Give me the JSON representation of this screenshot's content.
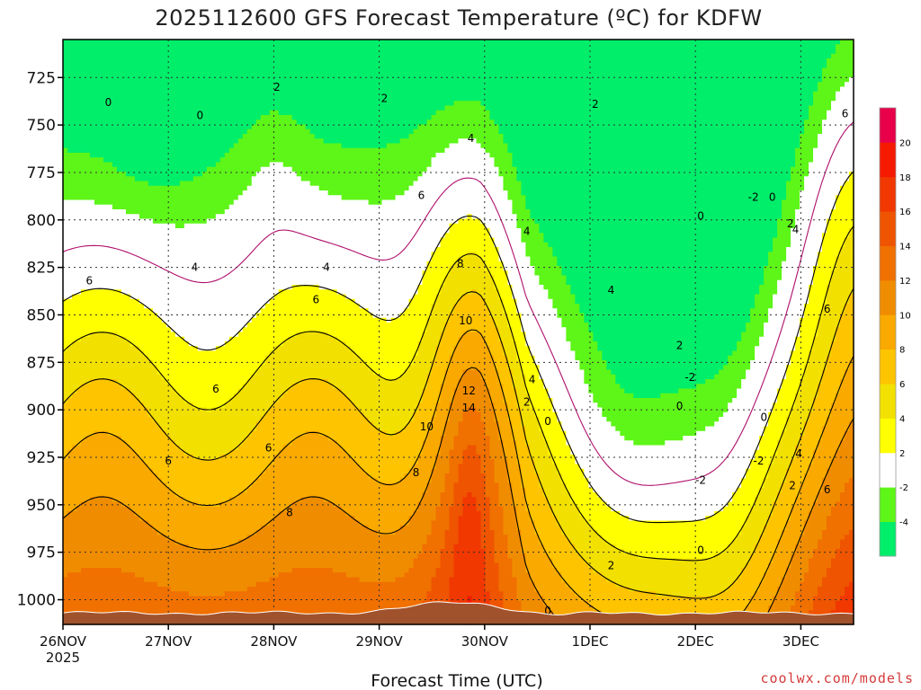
{
  "chart_data": {
    "type": "heatmap",
    "title": "2025112600 GFS Forecast Temperature (ºC) for KDFW",
    "xlabel": "Forecast Time (UTC)",
    "ylabel": "",
    "x_ticks": [
      "26NOV",
      "27NOV",
      "28NOV",
      "29NOV",
      "30NOV",
      "1DEC",
      "2DEC",
      "3DEC"
    ],
    "x_year_label": "2025",
    "xlim_days": [
      0,
      7.5
    ],
    "y_ticks": [
      725,
      750,
      775,
      800,
      825,
      850,
      875,
      900,
      925,
      950,
      975,
      1000
    ],
    "ylim_hpa": [
      705,
      1013
    ],
    "y_inverted": true,
    "grid": true,
    "colorbar": {
      "position": "right",
      "levels": [
        -6,
        -4,
        -2,
        2,
        4,
        6,
        8,
        10,
        12,
        14,
        16,
        18,
        20,
        22
      ],
      "tick_labels": [
        "-4",
        "-2",
        "2",
        "4",
        "6",
        "8",
        "10",
        "12",
        "14",
        "16",
        "18",
        "20"
      ],
      "colors": [
        "#00ee6a",
        "#5ef518",
        "#ffffff",
        "#ffff00",
        "#f2e000",
        "#ffc400",
        "#f9a900",
        "#f08c00",
        "#f07000",
        "#ef5400",
        "#f03800",
        "#f51a00",
        "#e8004a"
      ]
    },
    "contour_labels": [
      {
        "value": "0",
        "time": 0.43,
        "p": 738
      },
      {
        "value": "0",
        "time": 1.3,
        "p": 745
      },
      {
        "value": "2",
        "time": 2.03,
        "p": 730
      },
      {
        "value": "2",
        "time": 3.05,
        "p": 736
      },
      {
        "value": "2",
        "time": 5.05,
        "p": 739
      },
      {
        "value": "4",
        "time": 3.87,
        "p": 757
      },
      {
        "value": "4",
        "time": 1.25,
        "p": 825
      },
      {
        "value": "4",
        "time": 2.5,
        "p": 825
      },
      {
        "value": "4",
        "time": 4.4,
        "p": 806
      },
      {
        "value": "4",
        "time": 5.2,
        "p": 837
      },
      {
        "value": "6",
        "time": 0.25,
        "p": 832
      },
      {
        "value": "6",
        "time": 2.4,
        "p": 842
      },
      {
        "value": "6",
        "time": 3.4,
        "p": 787
      },
      {
        "value": "6",
        "time": 1.45,
        "p": 889
      },
      {
        "value": "6",
        "time": 1.95,
        "p": 920
      },
      {
        "value": "6",
        "time": 1.0,
        "p": 927
      },
      {
        "value": "8",
        "time": 2.15,
        "p": 954
      },
      {
        "value": "8",
        "time": 3.77,
        "p": 823
      },
      {
        "value": "8",
        "time": 3.35,
        "p": 933
      },
      {
        "value": "10",
        "time": 3.82,
        "p": 853
      },
      {
        "value": "10",
        "time": 3.45,
        "p": 909
      },
      {
        "value": "12",
        "time": 3.85,
        "p": 890
      },
      {
        "value": "14",
        "time": 3.85,
        "p": 899
      },
      {
        "value": "4",
        "time": 4.45,
        "p": 884
      },
      {
        "value": "2",
        "time": 4.4,
        "p": 896
      },
      {
        "value": "0",
        "time": 4.6,
        "p": 906
      },
      {
        "value": "0",
        "time": 4.6,
        "p": 1006
      },
      {
        "value": "2",
        "time": 5.2,
        "p": 982
      },
      {
        "value": "2",
        "time": 5.85,
        "p": 866
      },
      {
        "value": "0",
        "time": 5.85,
        "p": 898
      },
      {
        "value": "0",
        "time": 6.05,
        "p": 798
      },
      {
        "value": "-2",
        "time": 5.95,
        "p": 883
      },
      {
        "value": "-2",
        "time": 6.05,
        "p": 937
      },
      {
        "value": "0",
        "time": 6.05,
        "p": 974
      },
      {
        "value": "-2",
        "time": 6.55,
        "p": 788
      },
      {
        "value": "0",
        "time": 6.73,
        "p": 788
      },
      {
        "value": "0",
        "time": 6.65,
        "p": 904
      },
      {
        "value": "-2",
        "time": 6.6,
        "p": 927
      },
      {
        "value": "2",
        "time": 6.9,
        "p": 802
      },
      {
        "value": "4",
        "time": 6.95,
        "p": 805
      },
      {
        "value": "2",
        "time": 6.92,
        "p": 940
      },
      {
        "value": "4",
        "time": 6.98,
        "p": 923
      },
      {
        "value": "6",
        "time": 7.42,
        "p": 744
      },
      {
        "value": "6",
        "time": 7.25,
        "p": 847
      },
      {
        "value": "6",
        "time": 7.25,
        "p": 942
      }
    ]
  },
  "credit": "coolwx.com/models"
}
